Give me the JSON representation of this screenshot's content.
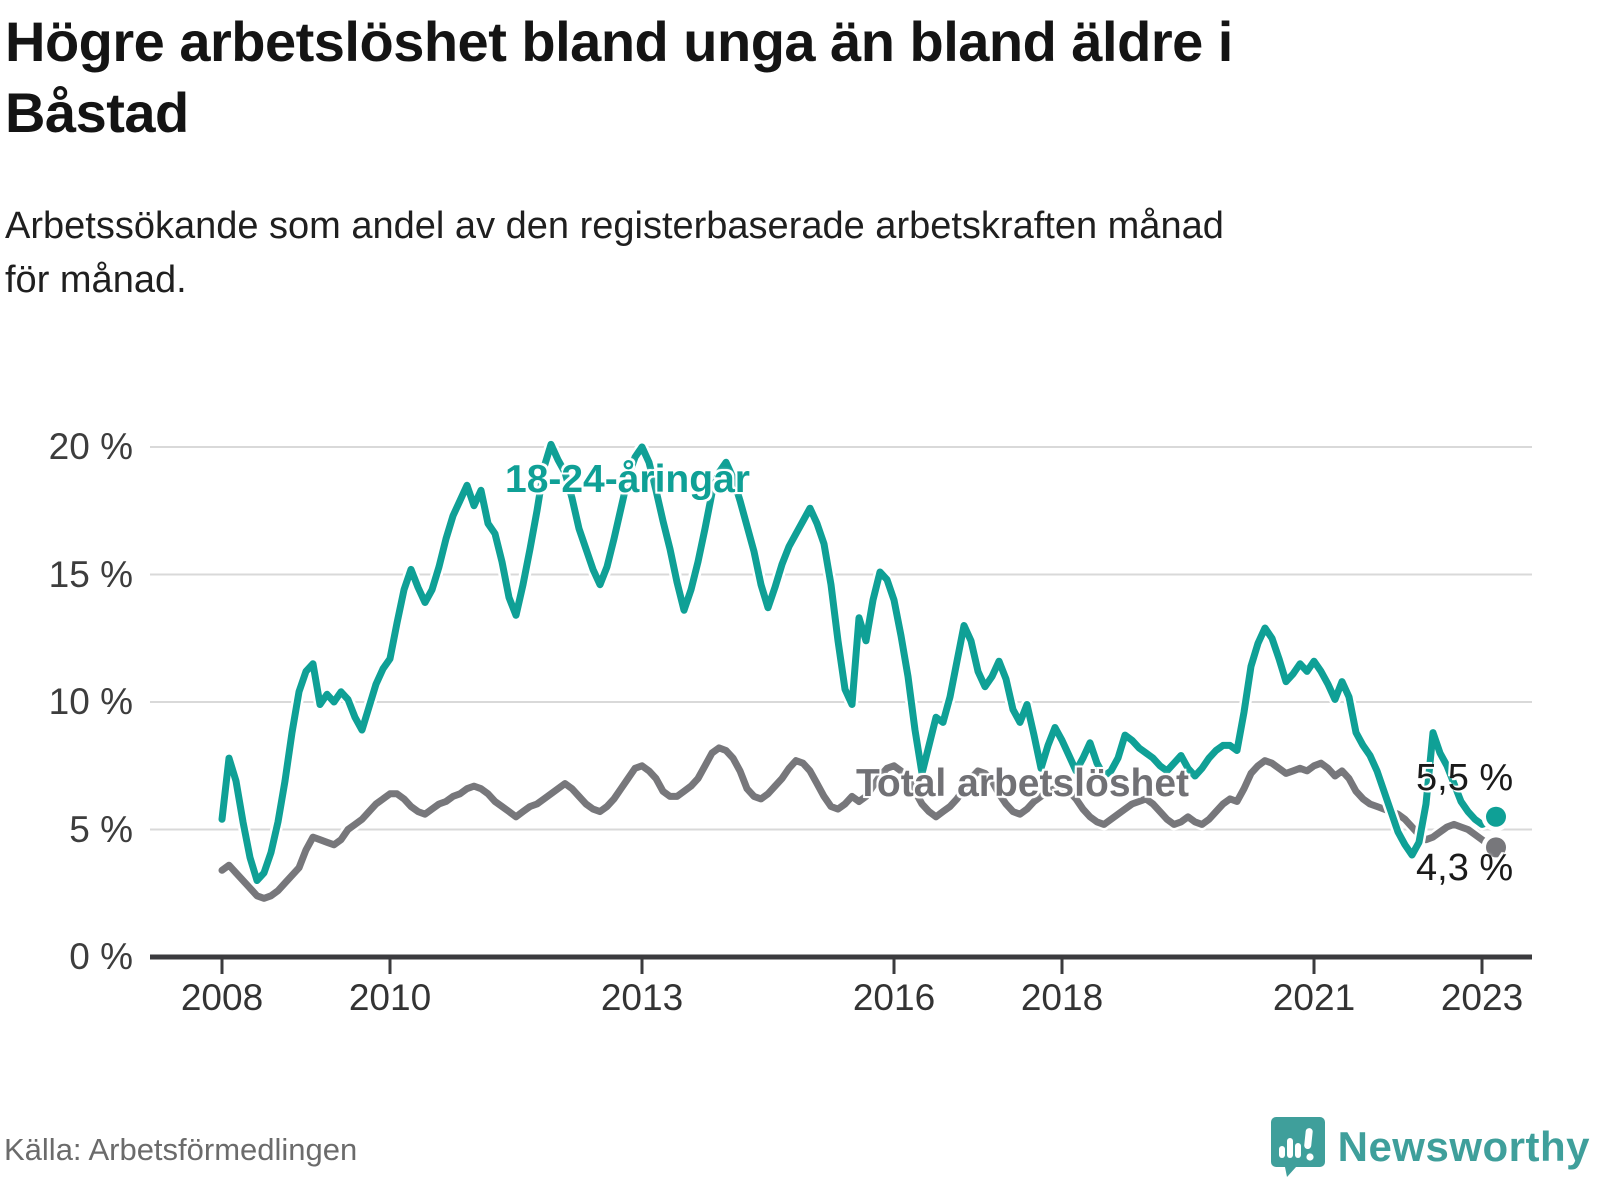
{
  "header": {
    "title": "Högre arbetslöshet bland unga än bland äldre i\nBåstad",
    "subtitle": "Arbetssökande som andel av den registerbaserade arbetskraften månad\nför månad."
  },
  "footer": {
    "source": "Källa: Arbetsförmedlingen",
    "brand": "Newsworthy"
  },
  "colors": {
    "youth": "#0fa096",
    "total": "#77777b",
    "total_label": "#717175",
    "gridline": "#d9d9d9",
    "axis": "#3b3b3e",
    "brand_teal": "#3f9f9b"
  },
  "chart_data": {
    "type": "line",
    "title": "Högre arbetslöshet bland unga än bland äldre i Båstad",
    "unit": "percent of registered labour force",
    "frequency": "monthly",
    "x_start": "2008-01",
    "x_end": "2023-03",
    "ylim": [
      0,
      21
    ],
    "grid": true,
    "legend_position": "inline-labels",
    "yticks": [
      {
        "value": 20,
        "label": "20 %"
      },
      {
        "value": 15,
        "label": "15 %"
      },
      {
        "value": 10,
        "label": "10 %"
      },
      {
        "value": 5,
        "label": "5 %"
      },
      {
        "value": 0,
        "label": "0 %"
      }
    ],
    "xticks": [
      {
        "year": 2008,
        "label": "2008"
      },
      {
        "year": 2010,
        "label": "2010"
      },
      {
        "year": 2013,
        "label": "2013"
      },
      {
        "year": 2016,
        "label": "2016"
      },
      {
        "year": 2018,
        "label": "2018"
      },
      {
        "year": 2021,
        "label": "2021"
      },
      {
        "year": 2023,
        "label": "2023"
      }
    ],
    "series": [
      {
        "name": "Total arbetslöshet",
        "color": "#77777b",
        "end_label": "4,3 %",
        "last_value": 4.3,
        "values": [
          3.4,
          3.6,
          3.3,
          3.0,
          2.7,
          2.4,
          2.3,
          2.4,
          2.6,
          2.9,
          3.2,
          3.5,
          4.2,
          4.7,
          4.6,
          4.5,
          4.4,
          4.6,
          5.0,
          5.2,
          5.4,
          5.7,
          6.0,
          6.2,
          6.4,
          6.4,
          6.2,
          5.9,
          5.7,
          5.6,
          5.8,
          6.0,
          6.1,
          6.3,
          6.4,
          6.6,
          6.7,
          6.6,
          6.4,
          6.1,
          5.9,
          5.7,
          5.5,
          5.7,
          5.9,
          6.0,
          6.2,
          6.4,
          6.6,
          6.8,
          6.6,
          6.3,
          6.0,
          5.8,
          5.7,
          5.9,
          6.2,
          6.6,
          7.0,
          7.4,
          7.5,
          7.3,
          7.0,
          6.5,
          6.3,
          6.3,
          6.5,
          6.7,
          7.0,
          7.5,
          8.0,
          8.2,
          8.1,
          7.8,
          7.3,
          6.6,
          6.3,
          6.2,
          6.4,
          6.7,
          7.0,
          7.4,
          7.7,
          7.6,
          7.3,
          6.8,
          6.3,
          5.9,
          5.8,
          6.0,
          6.3,
          6.1,
          6.3,
          6.7,
          7.1,
          7.4,
          7.5,
          7.3,
          7.0,
          6.5,
          6.0,
          5.7,
          5.5,
          5.7,
          5.9,
          6.2,
          6.6,
          7.0,
          7.3,
          7.2,
          6.9,
          6.4,
          6.0,
          5.7,
          5.6,
          5.8,
          6.1,
          6.3,
          6.5,
          6.6,
          6.7,
          6.5,
          6.2,
          5.8,
          5.5,
          5.3,
          5.2,
          5.4,
          5.6,
          5.8,
          6.0,
          6.1,
          6.2,
          6.0,
          5.7,
          5.4,
          5.2,
          5.3,
          5.5,
          5.3,
          5.2,
          5.4,
          5.7,
          6.0,
          6.2,
          6.1,
          6.6,
          7.2,
          7.5,
          7.7,
          7.6,
          7.4,
          7.2,
          7.3,
          7.4,
          7.3,
          7.5,
          7.6,
          7.4,
          7.1,
          7.3,
          7.0,
          6.5,
          6.2,
          6.0,
          5.9,
          5.8,
          5.7,
          5.6,
          5.4,
          5.1,
          4.8,
          4.6,
          4.7,
          4.9,
          5.1,
          5.2,
          5.1,
          5.0,
          4.8,
          4.6,
          4.4,
          4.3
        ]
      },
      {
        "name": "18-24-åringar",
        "color": "#0fa096",
        "end_label": "5,5 %",
        "last_value": 5.5,
        "values": [
          5.4,
          7.8,
          6.9,
          5.3,
          3.9,
          3.0,
          3.3,
          4.1,
          5.3,
          6.9,
          8.8,
          10.4,
          11.2,
          11.5,
          9.9,
          10.3,
          10.0,
          10.4,
          10.1,
          9.4,
          8.9,
          9.8,
          10.7,
          11.3,
          11.7,
          13.1,
          14.4,
          15.2,
          14.5,
          13.9,
          14.4,
          15.3,
          16.4,
          17.3,
          17.9,
          18.5,
          17.7,
          18.3,
          17.0,
          16.6,
          15.5,
          14.1,
          13.4,
          14.6,
          16.0,
          17.5,
          19.2,
          20.1,
          19.5,
          19.0,
          18.0,
          16.8,
          16.0,
          15.2,
          14.6,
          15.3,
          16.4,
          17.6,
          18.8,
          19.6,
          20.0,
          19.4,
          18.3,
          17.1,
          16.0,
          14.7,
          13.6,
          14.4,
          15.5,
          16.8,
          18.2,
          19.0,
          19.4,
          18.8,
          17.9,
          16.9,
          15.9,
          14.6,
          13.7,
          14.5,
          15.4,
          16.1,
          16.6,
          17.1,
          17.6,
          17.0,
          16.2,
          14.6,
          12.4,
          10.5,
          9.9,
          13.3,
          12.4,
          14.0,
          15.1,
          14.8,
          14.0,
          12.6,
          11.0,
          8.9,
          7.2,
          8.3,
          9.4,
          9.2,
          10.2,
          11.6,
          13.0,
          12.4,
          11.2,
          10.6,
          11.0,
          11.6,
          10.9,
          9.7,
          9.2,
          9.9,
          8.7,
          7.4,
          8.3,
          9.0,
          8.5,
          7.9,
          7.3,
          7.8,
          8.4,
          7.6,
          7.1,
          7.3,
          7.8,
          8.7,
          8.5,
          8.2,
          8.0,
          7.8,
          7.5,
          7.3,
          7.6,
          7.9,
          7.4,
          7.1,
          7.4,
          7.8,
          8.1,
          8.3,
          8.3,
          8.1,
          9.6,
          11.4,
          12.3,
          12.9,
          12.5,
          11.7,
          10.8,
          11.1,
          11.5,
          11.2,
          11.6,
          11.2,
          10.7,
          10.1,
          10.8,
          10.2,
          8.8,
          8.3,
          7.9,
          7.3,
          6.5,
          5.7,
          4.9,
          4.4,
          4.0,
          4.5,
          6.0,
          8.8,
          8.0,
          7.5,
          6.8,
          6.1,
          5.7,
          5.4,
          5.2,
          5.3,
          5.5
        ]
      }
    ]
  }
}
